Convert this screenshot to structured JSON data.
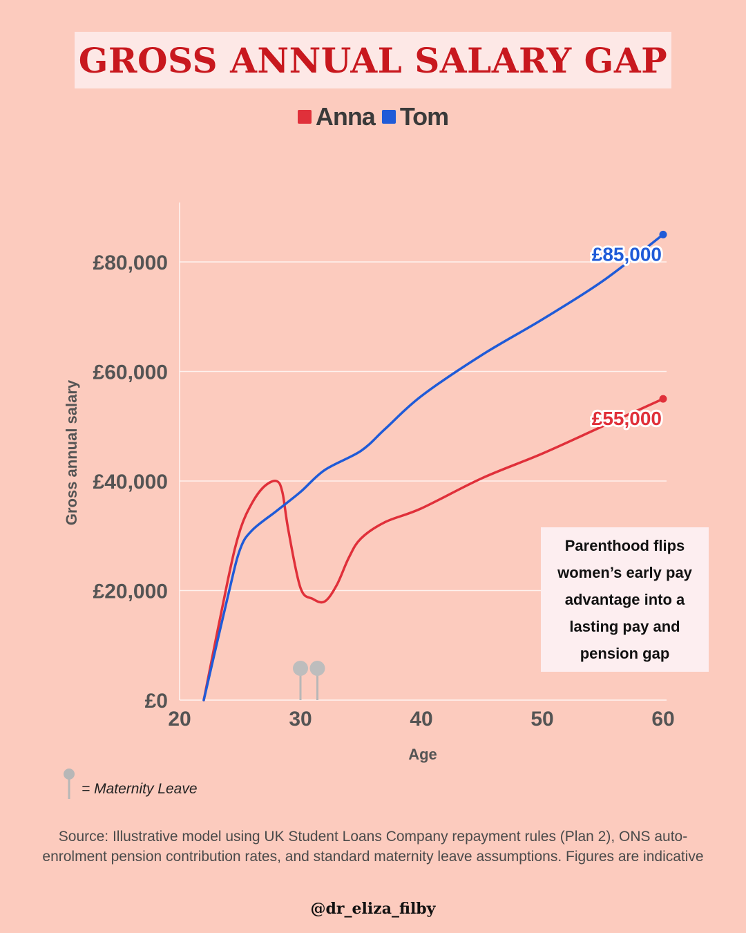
{
  "title": "GROSS ANNUAL SALARY GAP",
  "legend": [
    {
      "label": "Anna",
      "color": "#e0303a"
    },
    {
      "label": "Tom",
      "color": "#1f5bd8"
    }
  ],
  "annotation": "Parenthood flips women’s early pay advantage into a lasting pay and pension gap",
  "maternity_legend": "= Maternity Leave",
  "source": "Source: Illustrative model using UK Student Loans Company repayment rules (Plan 2), ONS auto-enrolment pension contribution rates, and standard maternity leave assumptions. Figures are indicative",
  "handle": "@dr_eliza_filby",
  "chart_data": {
    "type": "line",
    "title": "GROSS ANNUAL SALARY GAP",
    "xlabel": "Age",
    "ylabel": "Gross annual salary",
    "xlim": [
      20,
      60
    ],
    "ylim": [
      0,
      90000
    ],
    "x_ticks": [
      20,
      30,
      40,
      50,
      60
    ],
    "y_ticks": [
      0,
      20000,
      40000,
      60000,
      80000
    ],
    "y_tick_labels": [
      "£0",
      "£20,000",
      "£40,000",
      "£60,000",
      "£80,000"
    ],
    "grid": "horizontal",
    "series": [
      {
        "name": "Anna",
        "color": "#e0303a",
        "points": [
          [
            22,
            0
          ],
          [
            24,
            22000
          ],
          [
            25,
            31000
          ],
          [
            26,
            36000
          ],
          [
            27,
            39000
          ],
          [
            28,
            40000
          ],
          [
            28.5,
            38000
          ],
          [
            29,
            31000
          ],
          [
            30,
            20500
          ],
          [
            31,
            18500
          ],
          [
            32,
            18000
          ],
          [
            33,
            21000
          ],
          [
            34,
            26000
          ],
          [
            35,
            29500
          ],
          [
            37,
            32500
          ],
          [
            40,
            35000
          ],
          [
            45,
            40500
          ],
          [
            50,
            45000
          ],
          [
            55,
            50000
          ],
          [
            60,
            55000
          ]
        ],
        "end_label": "£55,000"
      },
      {
        "name": "Tom",
        "color": "#1f5bd8",
        "points": [
          [
            22,
            0
          ],
          [
            24,
            19000
          ],
          [
            25,
            27500
          ],
          [
            26,
            31000
          ],
          [
            28,
            34500
          ],
          [
            30,
            38000
          ],
          [
            32,
            42000
          ],
          [
            35,
            45500
          ],
          [
            37,
            49500
          ],
          [
            40,
            55500
          ],
          [
            45,
            63000
          ],
          [
            50,
            69500
          ],
          [
            55,
            76500
          ],
          [
            60,
            85000
          ]
        ],
        "end_label": "£85,000"
      }
    ],
    "markers": {
      "label": "Maternity Leave",
      "ages": [
        30,
        31.4
      ]
    }
  }
}
